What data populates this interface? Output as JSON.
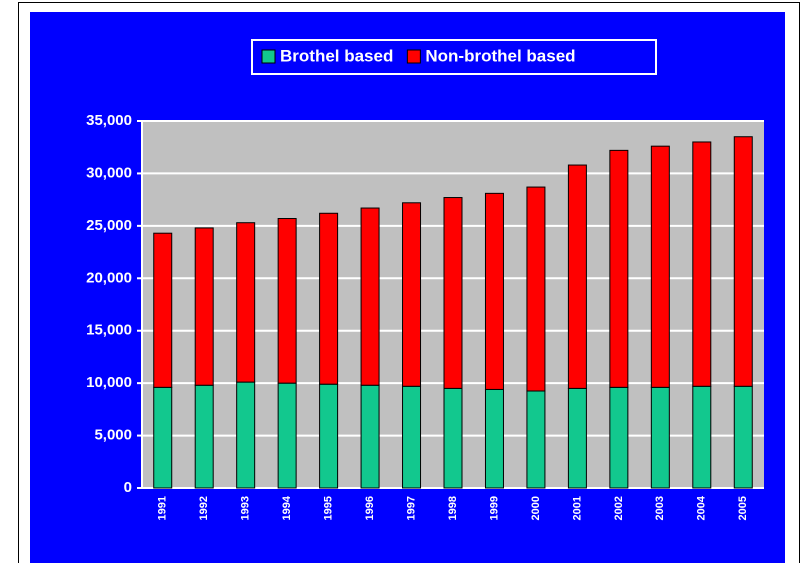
{
  "chart_data": {
    "type": "stacked_bar",
    "categories": [
      "1991",
      "1992",
      "1993",
      "1994",
      "1995",
      "1996",
      "1997",
      "1998",
      "1999",
      "2000",
      "2001",
      "2002",
      "2003",
      "2004",
      "2005"
    ],
    "series": [
      {
        "name": "Brothel based",
        "color": "#12c88e",
        "values": [
          9600,
          9800,
          10100,
          10000,
          9900,
          9800,
          9700,
          9500,
          9400,
          9250,
          9500,
          9600,
          9600,
          9700,
          9700
        ]
      },
      {
        "name": "Non-brothel based",
        "color": "#ff0000",
        "values": [
          14700,
          15000,
          15200,
          15700,
          16300,
          16900,
          17500,
          18200,
          18700,
          19450,
          21300,
          22600,
          23000,
          23300,
          23800
        ]
      }
    ],
    "ylim": [
      0,
      35000
    ],
    "yticks": [
      {
        "value": 0,
        "label": "0"
      },
      {
        "value": 5000,
        "label": "5,000"
      },
      {
        "value": 10000,
        "label": "10,000"
      },
      {
        "value": 15000,
        "label": "15,000"
      },
      {
        "value": 20000,
        "label": "20,000"
      },
      {
        "value": 25000,
        "label": "25,000"
      },
      {
        "value": 30000,
        "label": "30,000"
      },
      {
        "value": 35000,
        "label": "35,000"
      }
    ],
    "grid": true,
    "legend": "top"
  }
}
